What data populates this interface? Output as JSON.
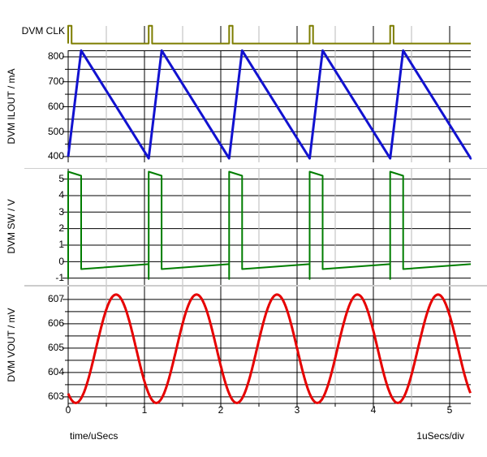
{
  "axis_x": {
    "label": "time/uSecs",
    "div_label": "1uSecs/div",
    "ticks": [
      0,
      1,
      2,
      3,
      4,
      5
    ],
    "minor_ticks": [
      0.5,
      1.5,
      2.5,
      3.5,
      4.5
    ],
    "xlim": [
      0,
      5.277
    ],
    "units_per_div": 1
  },
  "chart_data": [
    {
      "type": "line",
      "name": "DVM CLK",
      "color": "#7d7d00",
      "signal": "clock",
      "baseline": 0,
      "high": 1,
      "pulse_times": [
        0,
        1.055,
        2.11,
        3.165,
        4.22
      ],
      "pulse_width": 0.045,
      "ylim": [
        -0.02,
        1.08
      ],
      "yticks": [],
      "gridlines": []
    },
    {
      "type": "line",
      "name": "DVM ILOUT / mA",
      "color": "#1212d0",
      "signal": "sawtooth",
      "points": [
        [
          0,
          400
        ],
        [
          0.17,
          825
        ],
        [
          1.055,
          393
        ],
        [
          1.225,
          825
        ],
        [
          2.11,
          393
        ],
        [
          2.28,
          825
        ],
        [
          3.165,
          393
        ],
        [
          3.335,
          825
        ],
        [
          4.22,
          393
        ],
        [
          4.39,
          825
        ],
        [
          5.275,
          393
        ],
        [
          5.277,
          394
        ]
      ],
      "peak": 825,
      "trough": 393,
      "period": 1.055,
      "ylim": [
        377,
        826
      ],
      "yticks": [
        400,
        500,
        600,
        700,
        800
      ],
      "gridlines": [
        400,
        450,
        500,
        550,
        600,
        650,
        700,
        750,
        800
      ]
    },
    {
      "type": "line",
      "name": "DVM SW / V",
      "color": "#007d00",
      "signal": "switch",
      "pulse_starts": [
        0,
        1.055,
        2.11,
        3.165,
        4.22
      ],
      "period": 1.055,
      "on_time": 0.17,
      "high_start": 5.45,
      "high_end": 5.2,
      "low_start": -0.45,
      "low_end": -0.15,
      "spike": -1.05,
      "ylim": [
        -1.41,
        5.62
      ],
      "yticks": [
        -1,
        0,
        1,
        2,
        3,
        4,
        5
      ],
      "gridlines": [
        -1,
        0,
        1,
        2,
        3,
        4,
        5
      ]
    },
    {
      "type": "line",
      "name": "DVM VOUT / mV",
      "color": "#e60000",
      "signal": "sine",
      "mid": 604.975,
      "amplitude": 2.225,
      "period": 1.055,
      "trough_time": 0.1,
      "min": 602.75,
      "max": 607.2,
      "ylim": [
        602.73,
        607.53
      ],
      "yticks": [
        603,
        604,
        605,
        606,
        607
      ],
      "gridlines": [
        603,
        603.5,
        604,
        604.5,
        605,
        605.5,
        606,
        606.5,
        607
      ]
    }
  ]
}
